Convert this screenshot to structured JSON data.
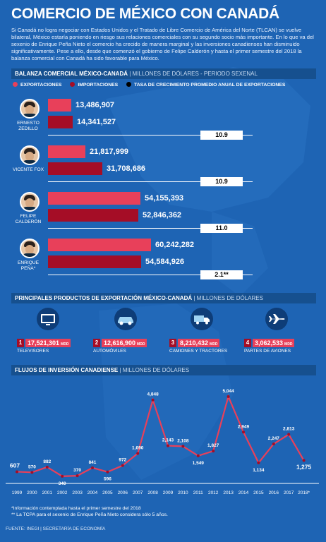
{
  "title": "COMERCIO DE MÉXICO CON CANADÁ",
  "intro": "Si Canadá no logra negociar con Estados Unidos y el Tratado de Libre Comercio de América del Norte (TLCAN) se vuelve bilateral, México estaría poniendo en riesgo sus relaciones comerciales con su segundo socio más importante. En lo que va del sexenio de Enrique Peña Nieto el comercio ha crecido de manera marginal y las inversiones canadienses han disminuido significativamente. Pese a ello, desde que comenzó el gobierno de Felipe Calderón y hasta el primer semestre del 2018 la balanza comercial con Canadá ha sido favorable para México.",
  "colors": {
    "exports": "#e8405a",
    "imports": "#a50d26",
    "background": "#1e64b4",
    "header": "#16508f"
  },
  "balance": {
    "header_bold": "BALANZA COMERCIAL MÉXICO-CANADÁ",
    "header_unit": "| MILLONES DE DÓLARES - PERIODO SEXENAL",
    "legend": {
      "exports": "EXPORTACIONES",
      "imports": "IMPORTACIONES",
      "rate": "TASA DE CRECIMIENTO PROMEDIO ANUAL DE EXPORTACIONES"
    },
    "presidents": [
      {
        "name": "ERNESTO ZEDILLO",
        "exports": 13486907,
        "exports_label": "13,486,907",
        "imports": 14341527,
        "imports_label": "14,341,527",
        "rate": "10.9"
      },
      {
        "name": "VICENTE FOX",
        "exports": 21817999,
        "exports_label": "21,817,999",
        "imports": 31708686,
        "imports_label": "31,708,686",
        "rate": "10.9"
      },
      {
        "name": "FELIPE CALDERÓN",
        "exports": 54155393,
        "exports_label": "54,155,393",
        "imports": 52846362,
        "imports_label": "52,846,362",
        "rate": "11.0"
      },
      {
        "name": "ENRIQUE PEÑA*",
        "exports": 60242282,
        "exports_label": "60,242,282",
        "imports": 54584926,
        "imports_label": "54,584,926",
        "rate": "2.1**"
      }
    ]
  },
  "products": {
    "header_bold": "PRINCIPALES PRODUCTOS DE EXPORTACIÓN MÉXICO-CANADÁ",
    "header_unit": "| MILLONES DE DÓLARES",
    "unit": "MDD",
    "items": [
      {
        "rank": "1",
        "value": "17,521,301",
        "name": "TELEVISORES",
        "icon": "television-icon"
      },
      {
        "rank": "2",
        "value": "12,616,900",
        "name": "AUTOMÓVILES",
        "icon": "car-icon"
      },
      {
        "rank": "3",
        "value": "8,210,432",
        "name": "CAMIONES Y TRACTORES",
        "icon": "truck-icon"
      },
      {
        "rank": "4",
        "value": "3,062,533",
        "name": "PARTES DE AVIONES",
        "icon": "airplane-icon"
      }
    ]
  },
  "investment": {
    "header_bold": "FLUJOS DE INVERSIÓN CANADIENSE",
    "header_unit": "| MILLONES DE DÓLARES"
  },
  "chart_data": {
    "type": "line",
    "x": [
      "1999",
      "2000",
      "2001",
      "2002",
      "2003",
      "2004",
      "2005",
      "2006",
      "2007",
      "2008",
      "2009",
      "2010",
      "2011",
      "2012",
      "2013",
      "2014",
      "2015",
      "2016",
      "2017",
      "2018*"
    ],
    "values": [
      607,
      570,
      882,
      340,
      370,
      841,
      596,
      972,
      1690,
      4848,
      2143,
      2108,
      1549,
      1827,
      5044,
      2949,
      1134,
      2247,
      2813,
      1275
    ],
    "labels": [
      "607",
      "570",
      "882",
      "340",
      "370",
      "841",
      "596",
      "972",
      "1,690",
      "4,848",
      "2,143",
      "2,108",
      "1,549",
      "1,827",
      "5,044",
      "2,949",
      "1,134",
      "2,247",
      "2,813",
      "1,275"
    ],
    "title": "FLUJOS DE INVERSIÓN CANADIENSE",
    "ylabel": "MILLONES DE DÓLARES",
    "line_color": "#e8405a"
  },
  "footnotes": [
    "*Información contemplada hasta el primer semestre del 2018",
    "** La TCPA para el sexenio de Enrique Peña Nieto considera sólo 5 años."
  ],
  "source": "FUENTE: INEGI | SECRETARÍA DE ECONOMÍA"
}
